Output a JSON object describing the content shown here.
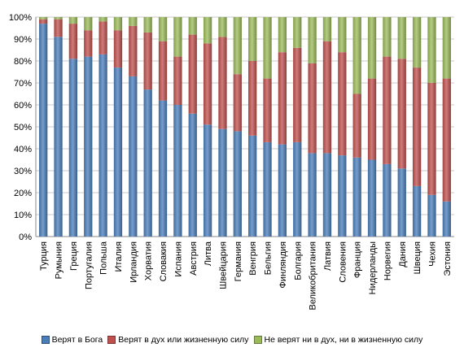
{
  "chart_data": {
    "type": "bar",
    "stacked": true,
    "categories": [
      "Турция",
      "Румыния",
      "Греция",
      "Португалия",
      "Польша",
      "Италия",
      "Ирландия",
      "Хорватия",
      "Словакия",
      "Испания",
      "Австрия",
      "Литва",
      "Швейцария",
      "Германия",
      "Венгрия",
      "Бельгия",
      "Финляндия",
      "Болгария",
      "Великобритания",
      "Латвия",
      "Словения",
      "Франция",
      "Нидерланды",
      "Норвегия",
      "Дания",
      "Швеция",
      "Чехия",
      "Эстония"
    ],
    "series": [
      {
        "name": "Верят в Бога",
        "color": "#4a7ebb",
        "values": [
          97,
          91,
          81,
          82,
          83,
          77,
          73,
          67,
          62,
          60,
          56,
          51,
          49,
          48,
          46,
          43,
          42,
          43,
          38,
          38,
          37,
          36,
          35,
          33,
          31,
          23,
          19,
          16
        ]
      },
      {
        "name": "Верят в дух или жизненную силу",
        "color": "#c0504d",
        "values": [
          2,
          8,
          16,
          12,
          15,
          17,
          23,
          26,
          27,
          22,
          36,
          37,
          42,
          26,
          34,
          29,
          42,
          43,
          41,
          51,
          47,
          29,
          37,
          49,
          50,
          54,
          51,
          56
        ]
      },
      {
        "name": "Не верят ни в дух, ни в жизненную силу",
        "color": "#9bbb59",
        "values": [
          1,
          1,
          3,
          6,
          2,
          6,
          4,
          7,
          11,
          18,
          8,
          12,
          9,
          26,
          20,
          28,
          16,
          14,
          21,
          11,
          16,
          35,
          28,
          18,
          19,
          23,
          30,
          28
        ]
      }
    ],
    "ylim": [
      0,
      100
    ],
    "yticks": [
      "0%",
      "10%",
      "20%",
      "30%",
      "40%",
      "50%",
      "60%",
      "70%",
      "80%",
      "90%",
      "100%"
    ],
    "grid": true,
    "legend_position": "bottom"
  }
}
